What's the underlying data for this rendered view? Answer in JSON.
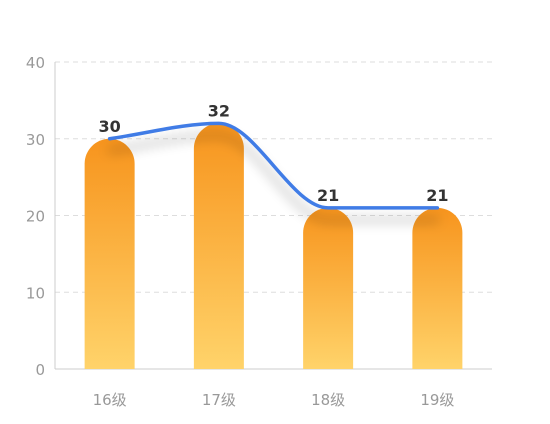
{
  "chart_data": {
    "type": "bar",
    "categories": [
      "16级",
      "17级",
      "18级",
      "19级"
    ],
    "values": [
      30,
      32,
      21,
      21
    ],
    "ylim": [
      0,
      40
    ],
    "yticks": [
      0,
      10,
      20,
      30,
      40
    ],
    "overlay_line": {
      "type": "line",
      "smooth": true,
      "values": [
        30,
        32,
        21,
        21
      ]
    },
    "data_labels": [
      "30",
      "32",
      "21",
      "21"
    ],
    "grid": true,
    "grid_style": "dashed",
    "colors": {
      "bar_top": "#f7941d",
      "bar_bottom": "#ffd36a",
      "line": "#3f7be6",
      "grid": "#dddddd",
      "axis": "#cccccc",
      "tick_text": "#999999",
      "label_text": "#333333"
    }
  }
}
